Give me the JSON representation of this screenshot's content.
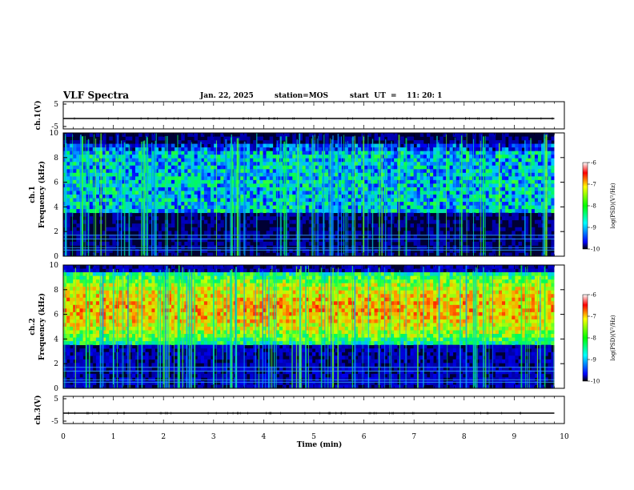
{
  "header": {
    "title": "VLF Spectra",
    "date": "Jan. 22, 2025",
    "station": "station=MOS",
    "start": "start  UT  =    11: 20: 1"
  },
  "chart_data": [
    {
      "type": "line",
      "name": "waveform-ch1",
      "ylabel": "ch.1(V)",
      "ylim": [
        -5,
        5
      ],
      "yticks": [
        "5",
        "-5"
      ],
      "x": [
        0,
        9.8
      ],
      "values": [
        0,
        0
      ]
    },
    {
      "type": "heatmap",
      "name": "spectrogram-ch1",
      "ylabel": "ch.1\nFrequency (kHz)",
      "ylim": [
        0,
        10
      ],
      "yticks": [
        "10",
        "8",
        "6",
        "4",
        "2",
        "0"
      ],
      "xlim": [
        0,
        9.8
      ],
      "colorbar": {
        "label": "log(PSD)(V²/Hz)",
        "ticks": [
          "-6",
          "-7",
          "-8",
          "-9",
          "-10"
        ],
        "range": [
          -10,
          -6
        ]
      },
      "description": "broadband emission 3.5-9 kHz with frequent vertical sferics, background near -10",
      "band_khz": [
        3.5,
        9
      ],
      "typical_level": -8.3
    },
    {
      "type": "heatmap",
      "name": "spectrogram-ch2",
      "ylabel": "ch.2\nFrequency (kHz)",
      "ylim": [
        0,
        10
      ],
      "yticks": [
        "10",
        "8",
        "6",
        "4",
        "2",
        "0"
      ],
      "xlim": [
        0,
        9.8
      ],
      "colorbar": {
        "label": "log(PSD)(V²/Hz)",
        "ticks": [
          "-6",
          "-7",
          "-8",
          "-9",
          "-10"
        ],
        "range": [
          -10,
          -6
        ]
      },
      "band_khz": [
        3.5,
        9.5
      ],
      "peak_khz": 6.5,
      "peak_level": -6.8
    },
    {
      "type": "line",
      "name": "waveform-ch3",
      "ylabel": "ch.3(V)",
      "ylim": [
        -5,
        5
      ],
      "yticks": [
        "5",
        "-5"
      ],
      "x": [
        0,
        9.8
      ],
      "values": [
        0,
        0
      ]
    }
  ],
  "xaxis": {
    "label": "Time  (min)",
    "ticks": [
      "0",
      "1",
      "2",
      "3",
      "4",
      "5",
      "6",
      "7",
      "8",
      "9",
      "10"
    ],
    "xlim": [
      0,
      10
    ]
  },
  "colors": {
    "background": "#000080",
    "low": "#0000ff",
    "mid": "#00ff00",
    "high": "#ff0000"
  }
}
